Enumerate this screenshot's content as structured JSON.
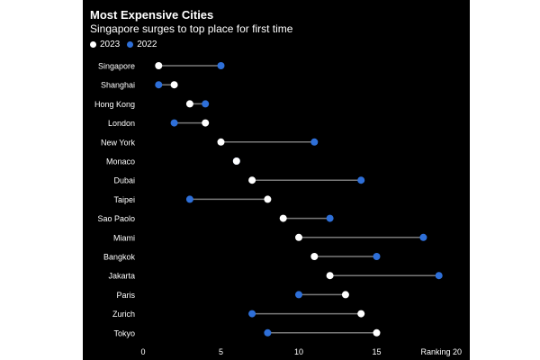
{
  "chart_data": {
    "type": "dumbbell",
    "title": "Most Expensive Cities",
    "subtitle": "Singapore surges to top place for first time",
    "xlabel": "Ranking",
    "xlim": [
      0,
      20
    ],
    "xticks": [
      0,
      5,
      10,
      15,
      20
    ],
    "legend_position": "top-left",
    "series": [
      {
        "name": "2023",
        "color": "#ffffff",
        "values": [
          1,
          2,
          3,
          4,
          5,
          6,
          7,
          8,
          9,
          10,
          11,
          12,
          13,
          14,
          15
        ]
      },
      {
        "name": "2022",
        "color": "#2e6fd8",
        "values": [
          5,
          1,
          4,
          2,
          11,
          6,
          14,
          3,
          12,
          18,
          15,
          19,
          10,
          7,
          8
        ]
      }
    ],
    "categories": [
      "Singapore",
      "Shanghai",
      "Hong Kong",
      "London",
      "New York",
      "Monaco",
      "Dubai",
      "Taipei",
      "Sao Paolo",
      "Miami",
      "Bangkok",
      "Jakarta",
      "Paris",
      "Zurich",
      "Tokyo"
    ]
  }
}
